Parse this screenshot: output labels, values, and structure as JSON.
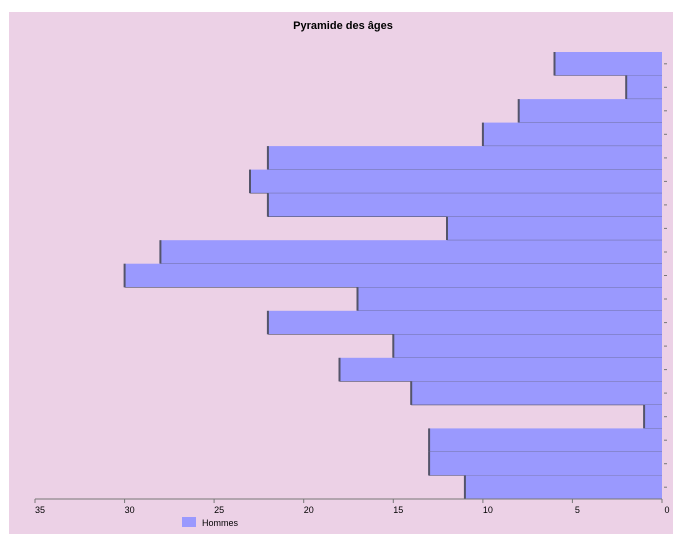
{
  "colors": {
    "plot_background": "#ecd1e6",
    "bar_fill": "#9a99fe",
    "bar_edge": "#54546a",
    "axis": "#777777"
  },
  "chart_data": {
    "type": "bar",
    "orientation": "horizontal",
    "title": "Pyramide des âges",
    "xlim": [
      35,
      0
    ],
    "x_reversed": true,
    "x_ticks": [
      35,
      30,
      25,
      20,
      15,
      10,
      5,
      0
    ],
    "x_tick_labels": [
      "35",
      "30",
      "25",
      "20",
      "15",
      "10",
      "5",
      "0"
    ],
    "xlabel": "",
    "ylabel": "",
    "grid": false,
    "legend_position": "bottom-left",
    "series": [
      {
        "name": "Hommes",
        "values": [
          6,
          2,
          8,
          10,
          22,
          23,
          22,
          12,
          28,
          30,
          17,
          22,
          15,
          18,
          14,
          1,
          13,
          13,
          11
        ]
      }
    ]
  }
}
